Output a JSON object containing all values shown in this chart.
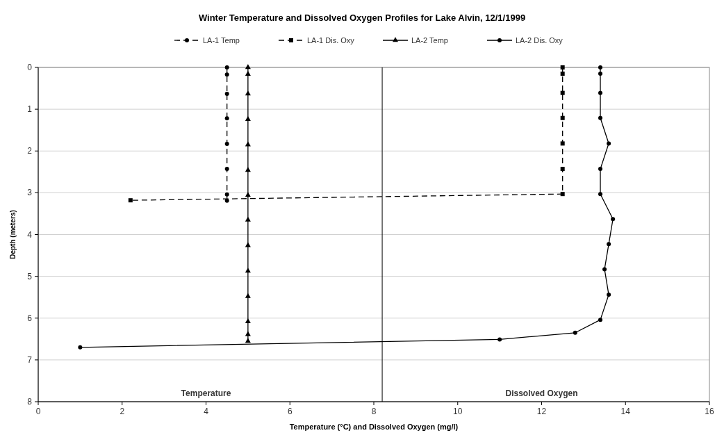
{
  "chart_data": {
    "type": "line",
    "title": "Winter Temperature and Dissolved Oxygen Profiles for Lake Alvin, 12/1/1999",
    "xlabel": "Temperature (°C) and Dissolved Oxygen (mg/l)",
    "ylabel": "Depth (meters)",
    "xlim": [
      0,
      16
    ],
    "xticks": [
      0,
      2,
      4,
      6,
      8,
      10,
      12,
      14,
      16
    ],
    "ylim": [
      8,
      0
    ],
    "yticks": [
      0,
      1,
      2,
      3,
      4,
      5,
      6,
      7,
      8
    ],
    "grid": "y",
    "legend": "top",
    "ref_lines": [
      {
        "axis": "x",
        "value": 8.2,
        "color": "#000000"
      }
    ],
    "annotations": [
      "Temperature",
      "Dissolved Oxygen"
    ],
    "series": [
      {
        "name": "LA-1 Temp",
        "color": "#000000",
        "marker": "circle",
        "line_style": "dashed",
        "x": [
          4.5,
          4.5,
          4.5,
          4.5,
          4.5,
          4.5,
          4.5,
          4.5
        ],
        "values": [
          0,
          0.17,
          0.63,
          1.22,
          1.83,
          2.43,
          3.04,
          3.19
        ]
      },
      {
        "name": "LA-1 Dis. Oxy",
        "color": "#000000",
        "marker": "square",
        "line_style": "dashed",
        "x": [
          12.5,
          12.5,
          12.5,
          12.5,
          12.5,
          12.5,
          12.5,
          2.2
        ],
        "values": [
          0,
          0.15,
          0.61,
          1.21,
          1.82,
          2.43,
          3.03,
          3.18
        ]
      },
      {
        "name": "LA-2 Temp",
        "color": "#000000",
        "marker": "triangle",
        "line_style": "solid",
        "x": [
          5,
          5,
          5,
          5,
          5,
          5,
          5,
          5,
          5,
          5,
          5,
          5,
          5,
          5
        ],
        "values": [
          0,
          0.16,
          0.63,
          1.24,
          1.85,
          2.46,
          3.06,
          3.65,
          4.26,
          4.87,
          5.48,
          6.08,
          6.39,
          6.55
        ]
      },
      {
        "name": "LA-2 Dis. Oxy",
        "color": "#000000",
        "marker": "circle",
        "line_style": "solid",
        "x": [
          13.4,
          13.4,
          13.4,
          13.4,
          13.6,
          13.4,
          13.4,
          13.7,
          13.6,
          13.5,
          13.6,
          13.4,
          12.8,
          11.0,
          1.0
        ],
        "values": [
          0,
          0.15,
          0.61,
          1.21,
          1.82,
          2.43,
          3.03,
          3.63,
          4.23,
          4.83,
          5.44,
          6.04,
          6.35,
          6.51,
          6.7
        ]
      }
    ]
  }
}
